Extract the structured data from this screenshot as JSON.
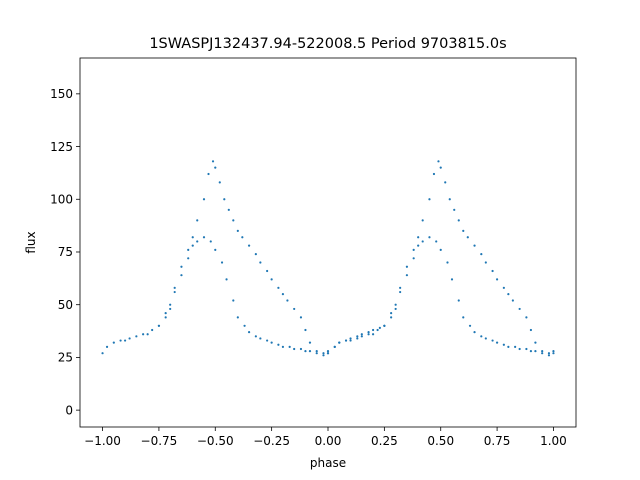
{
  "chart_data": {
    "type": "scatter",
    "title": "1SWASPJ132437.94-522008.5 Period 9703815.0s",
    "xlabel": "phase",
    "ylabel": "flux",
    "xlim": [
      -1.1,
      1.1
    ],
    "ylim": [
      -8,
      167
    ],
    "xticks": [
      -1.0,
      -0.75,
      -0.5,
      -0.25,
      0.0,
      0.25,
      0.5,
      0.75,
      1.0
    ],
    "xtick_labels": [
      "−1.00",
      "−0.75",
      "−0.50",
      "−0.25",
      "0.00",
      "0.25",
      "0.50",
      "0.75",
      "1.00"
    ],
    "yticks": [
      0,
      25,
      50,
      75,
      100,
      125,
      150
    ],
    "ytick_labels": [
      "0",
      "25",
      "50",
      "75",
      "100",
      "125",
      "150"
    ],
    "grid": false,
    "legend": "none",
    "marker_color": "#1f77b4",
    "series": [
      {
        "x": [
          -0.75,
          -0.72,
          -0.7,
          -0.68,
          -0.65,
          -0.62,
          -0.6,
          -0.58,
          -0.55,
          -0.53,
          -0.51,
          -0.5,
          -0.48,
          -0.46,
          -0.44,
          -0.42,
          -0.4,
          -0.38,
          -0.35,
          -0.32,
          -0.3,
          -0.27,
          -0.25,
          -0.22,
          -0.2,
          -0.18,
          -0.15,
          -0.12,
          -0.1,
          -0.08,
          -0.05,
          -0.02,
          0.0,
          0.03,
          0.05,
          0.08,
          0.1,
          0.13,
          0.15,
          0.18,
          0.2,
          0.23,
          0.25
        ],
        "y": [
          40,
          46,
          50,
          58,
          68,
          76,
          82,
          90,
          100,
          112,
          118,
          115,
          108,
          100,
          95,
          90,
          85,
          82,
          78,
          74,
          70,
          66,
          62,
          58,
          55,
          52,
          48,
          44,
          38,
          32,
          28,
          26,
          28,
          30,
          32,
          33,
          34,
          35,
          36,
          37,
          38,
          39,
          40
        ]
      },
      {
        "x": [
          -1.0,
          -0.98,
          -0.95,
          -0.92,
          -0.9,
          -0.88,
          -0.85,
          -0.82,
          -0.8,
          -0.78,
          -0.75,
          -0.72,
          -0.7,
          -0.68,
          -0.65,
          -0.62,
          -0.6,
          -0.58,
          -0.55,
          -0.52,
          -0.5,
          -0.47,
          -0.45,
          -0.42,
          -0.4,
          -0.37,
          -0.35,
          -0.32,
          -0.3,
          -0.27,
          -0.25,
          -0.22,
          -0.2,
          -0.17,
          -0.15,
          -0.12,
          -0.1,
          -0.08,
          -0.05,
          -0.02,
          0.0
        ],
        "y": [
          27,
          30,
          32,
          33,
          33,
          34,
          35,
          36,
          36,
          38,
          40,
          44,
          48,
          56,
          64,
          72,
          78,
          80,
          82,
          80,
          76,
          70,
          62,
          52,
          44,
          40,
          37,
          35,
          34,
          33,
          32,
          31,
          30,
          30,
          29,
          29,
          28,
          28,
          27,
          27,
          27
        ]
      },
      {
        "x": [
          0.25,
          0.28,
          0.3,
          0.32,
          0.35,
          0.38,
          0.4,
          0.42,
          0.45,
          0.47,
          0.49,
          0.5,
          0.52,
          0.54,
          0.56,
          0.58,
          0.6,
          0.62,
          0.65,
          0.68,
          0.7,
          0.73,
          0.75,
          0.78,
          0.8,
          0.82,
          0.85,
          0.88,
          0.9,
          0.92,
          0.95,
          0.98,
          1.0
        ],
        "y": [
          40,
          46,
          50,
          58,
          68,
          76,
          82,
          90,
          100,
          112,
          118,
          115,
          108,
          100,
          95,
          90,
          85,
          82,
          78,
          74,
          70,
          66,
          62,
          58,
          55,
          52,
          48,
          44,
          38,
          32,
          28,
          26,
          28
        ]
      },
      {
        "x": [
          0.0,
          0.03,
          0.05,
          0.08,
          0.1,
          0.13,
          0.15,
          0.18,
          0.2,
          0.22,
          0.25,
          0.28,
          0.3,
          0.32,
          0.35,
          0.38,
          0.4,
          0.42,
          0.45,
          0.48,
          0.5,
          0.53,
          0.55,
          0.58,
          0.6,
          0.63,
          0.65,
          0.68,
          0.7,
          0.73,
          0.75,
          0.78,
          0.8,
          0.83,
          0.85,
          0.88,
          0.9,
          0.92,
          0.95,
          0.98,
          1.0
        ],
        "y": [
          27,
          30,
          32,
          33,
          33,
          34,
          35,
          36,
          36,
          38,
          40,
          44,
          48,
          56,
          64,
          72,
          78,
          80,
          82,
          80,
          76,
          70,
          62,
          52,
          44,
          40,
          37,
          35,
          34,
          33,
          32,
          31,
          30,
          30,
          29,
          29,
          28,
          28,
          27,
          27,
          27
        ]
      }
    ]
  }
}
